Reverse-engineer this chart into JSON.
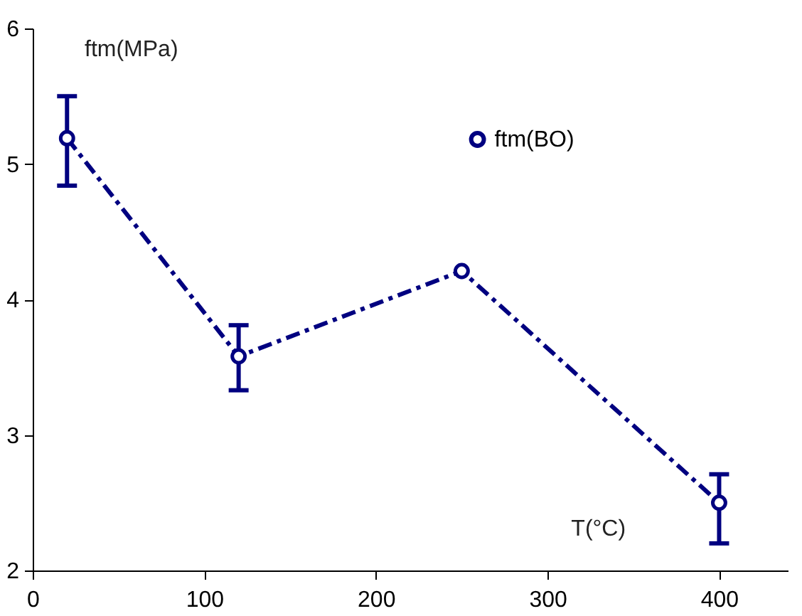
{
  "chart_data": {
    "type": "line",
    "xlabel": "T(°C)",
    "ylabel": "ftm(MPa)",
    "x": [
      20,
      120,
      250,
      400
    ],
    "series": [
      {
        "name": "ftm(BO)",
        "color": "#000080",
        "values": [
          5.19,
          3.58,
          4.21,
          2.5
        ],
        "errors": [
          [
            4.84,
            5.5
          ],
          [
            3.33,
            3.81
          ],
          null,
          [
            2.2,
            2.71
          ]
        ]
      }
    ],
    "xlim": [
      0,
      440
    ],
    "xticks": [
      0,
      100,
      200,
      300,
      400
    ],
    "ylim": [
      2,
      6
    ],
    "yticks": [
      2,
      3,
      4,
      5,
      6
    ],
    "grid": false,
    "legend": "top right",
    "marker": "circle",
    "line_style": "dashed"
  }
}
